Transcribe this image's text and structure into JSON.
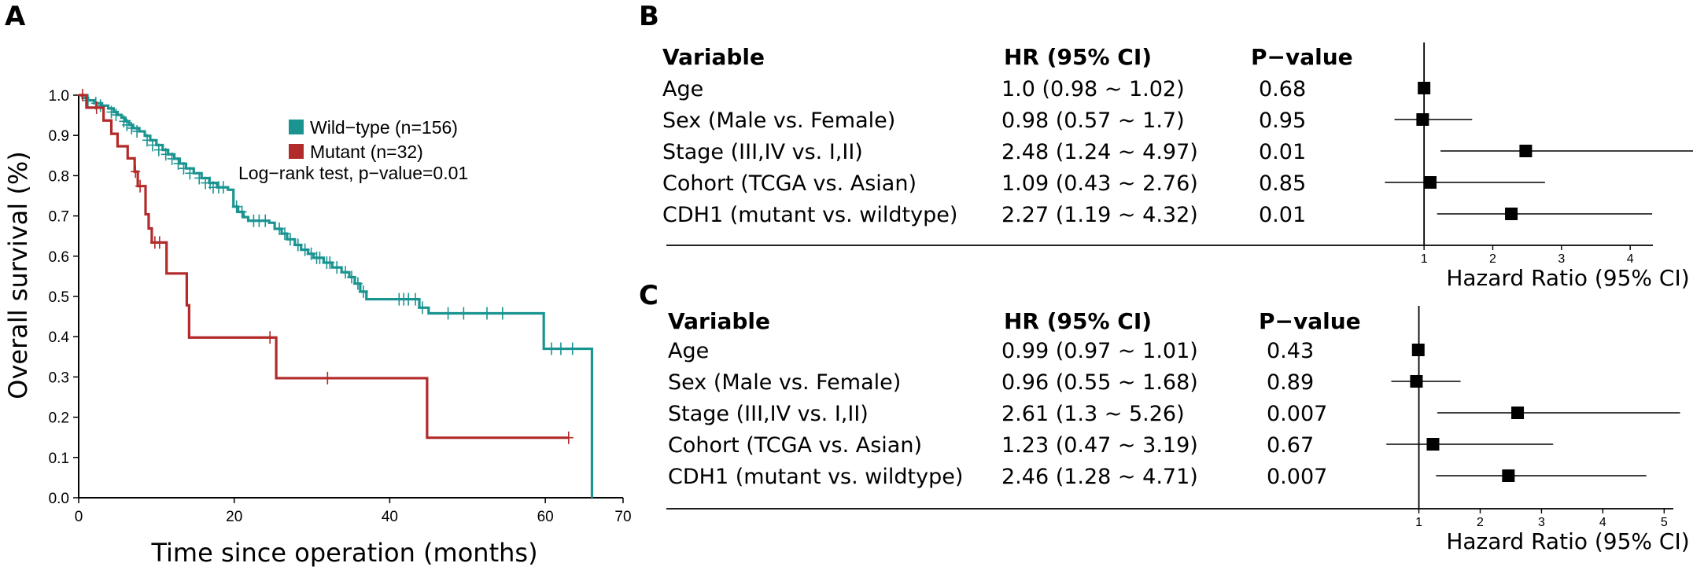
{
  "chart_data": [
    {
      "type": "line",
      "panel": "A",
      "xlabel": "Time since operation (months)",
      "ylabel": "Overall survival (%)",
      "xlim": [
        0,
        70
      ],
      "ylim": [
        0,
        1.0
      ],
      "xticks": [
        "0",
        "20",
        "40",
        "60",
        "70"
      ],
      "yticks": [
        "0.0",
        "0.1",
        "0.2",
        "0.3",
        "0.4",
        "0.5",
        "0.6",
        "0.7",
        "0.8",
        "0.9",
        "1.0"
      ],
      "legend_position": "top-right",
      "annotation": "Log−rank test, p−value=0.01",
      "series": [
        {
          "name": "Wild−type (n=156)",
          "color": "#1a9491",
          "steps": [
            [
              0,
              1.0
            ],
            [
              0.5,
              0.993
            ],
            [
              1.2,
              0.987
            ],
            [
              2,
              0.98
            ],
            [
              3,
              0.974
            ],
            [
              3.8,
              0.967
            ],
            [
              4.5,
              0.958
            ],
            [
              5,
              0.951
            ],
            [
              5.5,
              0.944
            ],
            [
              6,
              0.935
            ],
            [
              6.5,
              0.926
            ],
            [
              7,
              0.918
            ],
            [
              7.8,
              0.91
            ],
            [
              8.5,
              0.899
            ],
            [
              9.2,
              0.888
            ],
            [
              10,
              0.876
            ],
            [
              10.8,
              0.864
            ],
            [
              11.5,
              0.853
            ],
            [
              12.3,
              0.842
            ],
            [
              13,
              0.83
            ],
            [
              13.8,
              0.818
            ],
            [
              14.8,
              0.806
            ],
            [
              15.8,
              0.794
            ],
            [
              16.8,
              0.782
            ],
            [
              17.8,
              0.771
            ],
            [
              19.2,
              0.765
            ],
            [
              19.9,
              0.723
            ],
            [
              20.5,
              0.71
            ],
            [
              21.2,
              0.697
            ],
            [
              21.8,
              0.688
            ],
            [
              24.5,
              0.683
            ],
            [
              25.2,
              0.668
            ],
            [
              26.1,
              0.656
            ],
            [
              26.8,
              0.642
            ],
            [
              27.8,
              0.628
            ],
            [
              28.6,
              0.616
            ],
            [
              29.5,
              0.606
            ],
            [
              30.2,
              0.596
            ],
            [
              31.5,
              0.584
            ],
            [
              32.6,
              0.572
            ],
            [
              33.8,
              0.56
            ],
            [
              34.8,
              0.548
            ],
            [
              35.5,
              0.532
            ],
            [
              36.2,
              0.512
            ],
            [
              37,
              0.493
            ],
            [
              43.8,
              0.472
            ],
            [
              45,
              0.458
            ],
            [
              59.8,
              0.37
            ],
            [
              66,
              0.0
            ]
          ],
          "censor_points": [
            [
              1.2,
              0.987
            ],
            [
              2.2,
              0.98
            ],
            [
              2.8,
              0.974
            ],
            [
              4.2,
              0.958
            ],
            [
              4.8,
              0.951
            ],
            [
              5.8,
              0.935
            ],
            [
              6.2,
              0.926
            ],
            [
              6.8,
              0.918
            ],
            [
              7.5,
              0.91
            ],
            [
              8.8,
              0.888
            ],
            [
              9.5,
              0.876
            ],
            [
              10.3,
              0.864
            ],
            [
              11.2,
              0.853
            ],
            [
              12,
              0.842
            ],
            [
              12.8,
              0.83
            ],
            [
              13.5,
              0.818
            ],
            [
              14.3,
              0.806
            ],
            [
              15.5,
              0.794
            ],
            [
              16.3,
              0.782
            ],
            [
              16.9,
              0.782
            ],
            [
              17.3,
              0.771
            ],
            [
              18,
              0.771
            ],
            [
              18.6,
              0.771
            ],
            [
              20.3,
              0.723
            ],
            [
              21,
              0.71
            ],
            [
              22.5,
              0.688
            ],
            [
              23.2,
              0.688
            ],
            [
              24,
              0.688
            ],
            [
              25.8,
              0.668
            ],
            [
              26.5,
              0.656
            ],
            [
              27.2,
              0.642
            ],
            [
              28.2,
              0.628
            ],
            [
              29.1,
              0.616
            ],
            [
              29.9,
              0.606
            ],
            [
              30.6,
              0.596
            ],
            [
              31,
              0.596
            ],
            [
              31.9,
              0.584
            ],
            [
              32.3,
              0.584
            ],
            [
              33.2,
              0.572
            ],
            [
              34.3,
              0.56
            ],
            [
              35.1,
              0.548
            ],
            [
              35.9,
              0.532
            ],
            [
              36.6,
              0.512
            ],
            [
              41.2,
              0.493
            ],
            [
              41.8,
              0.493
            ],
            [
              42.4,
              0.493
            ],
            [
              43.3,
              0.493
            ],
            [
              44.2,
              0.472
            ],
            [
              47.5,
              0.458
            ],
            [
              49.5,
              0.458
            ],
            [
              52.5,
              0.458
            ],
            [
              54.5,
              0.458
            ],
            [
              60.8,
              0.37
            ],
            [
              62,
              0.37
            ],
            [
              63.5,
              0.37
            ]
          ]
        },
        {
          "name": "Mutant (n=32)",
          "color": "#b22a2a",
          "steps": [
            [
              0,
              1.0
            ],
            [
              1,
              0.969
            ],
            [
              2.8,
              0.969
            ],
            [
              3.2,
              0.937
            ],
            [
              4.2,
              0.904
            ],
            [
              5,
              0.873
            ],
            [
              6.3,
              0.843
            ],
            [
              7.2,
              0.81
            ],
            [
              7.6,
              0.774
            ],
            [
              8.6,
              0.704
            ],
            [
              9,
              0.669
            ],
            [
              9.4,
              0.634
            ],
            [
              11.3,
              0.557
            ],
            [
              13.9,
              0.478
            ],
            [
              14.2,
              0.398
            ],
            [
              25.4,
              0.297
            ],
            [
              44.8,
              0.149
            ],
            [
              63,
              0.149
            ]
          ],
          "censor_points": [
            [
              0.5,
              1.0
            ],
            [
              2.3,
              0.969
            ],
            [
              7.3,
              0.81
            ],
            [
              7.9,
              0.774
            ],
            [
              9.8,
              0.634
            ],
            [
              10.4,
              0.634
            ],
            [
              24.6,
              0.398
            ],
            [
              32,
              0.297
            ],
            [
              63,
              0.149
            ]
          ]
        }
      ]
    },
    {
      "type": "forest",
      "panel": "B",
      "headers": {
        "variable": "Variable",
        "hr": "HR (95% CI)",
        "p": "P−value"
      },
      "xlabel": "Hazard Ratio (95% CI)",
      "xticks": [
        1,
        2,
        3,
        4
      ],
      "rows": [
        {
          "variable": "Age",
          "hr_text": "1.0 (0.98 ~ 1.02)",
          "p": "0.68",
          "hr": 1.0,
          "lo": 0.98,
          "hi": 1.02
        },
        {
          "variable": "Sex (Male vs. Female)",
          "hr_text": "0.98 (0.57 ~ 1.7)",
          "p": "0.95",
          "hr": 0.98,
          "lo": 0.57,
          "hi": 1.7
        },
        {
          "variable": "Stage (III,IV vs. I,II)",
          "hr_text": "2.48 (1.24 ~ 4.97)",
          "p": "0.01",
          "hr": 2.48,
          "lo": 1.24,
          "hi": 4.97
        },
        {
          "variable": "Cohort (TCGA vs. Asian)",
          "hr_text": "1.09 (0.43 ~ 2.76)",
          "p": "0.85",
          "hr": 1.09,
          "lo": 0.43,
          "hi": 2.76
        },
        {
          "variable": "CDH1 (mutant vs. wildtype)",
          "hr_text": "2.27 (1.19 ~ 4.32)",
          "p": "0.01",
          "hr": 2.27,
          "lo": 1.19,
          "hi": 4.32
        }
      ]
    },
    {
      "type": "forest",
      "panel": "C",
      "headers": {
        "variable": "Variable",
        "hr": "HR (95% CI)",
        "p": "P−value"
      },
      "xlabel": "Hazard Ratio (95% CI)",
      "xticks": [
        1,
        2,
        3,
        4,
        5
      ],
      "rows": [
        {
          "variable": "Age",
          "hr_text": "0.99 (0.97 ~ 1.01)",
          "p": "0.43",
          "hr": 0.99,
          "lo": 0.97,
          "hi": 1.01
        },
        {
          "variable": "Sex (Male vs. Female)",
          "hr_text": "0.96 (0.55 ~ 1.68)",
          "p": "0.89",
          "hr": 0.96,
          "lo": 0.55,
          "hi": 1.68
        },
        {
          "variable": "Stage (III,IV vs. I,II)",
          "hr_text": "2.61 (1.3 ~ 5.26)",
          "p": "0.007",
          "hr": 2.61,
          "lo": 1.3,
          "hi": 5.26
        },
        {
          "variable": "Cohort (TCGA vs. Asian)",
          "hr_text": "1.23 (0.47 ~ 3.19)",
          "p": "0.67",
          "hr": 1.23,
          "lo": 0.47,
          "hi": 3.19
        },
        {
          "variable": "CDH1 (mutant vs. wildtype)",
          "hr_text": "2.46 (1.28 ~ 4.71)",
          "p": "0.007",
          "hr": 2.46,
          "lo": 1.28,
          "hi": 4.71
        }
      ]
    }
  ]
}
